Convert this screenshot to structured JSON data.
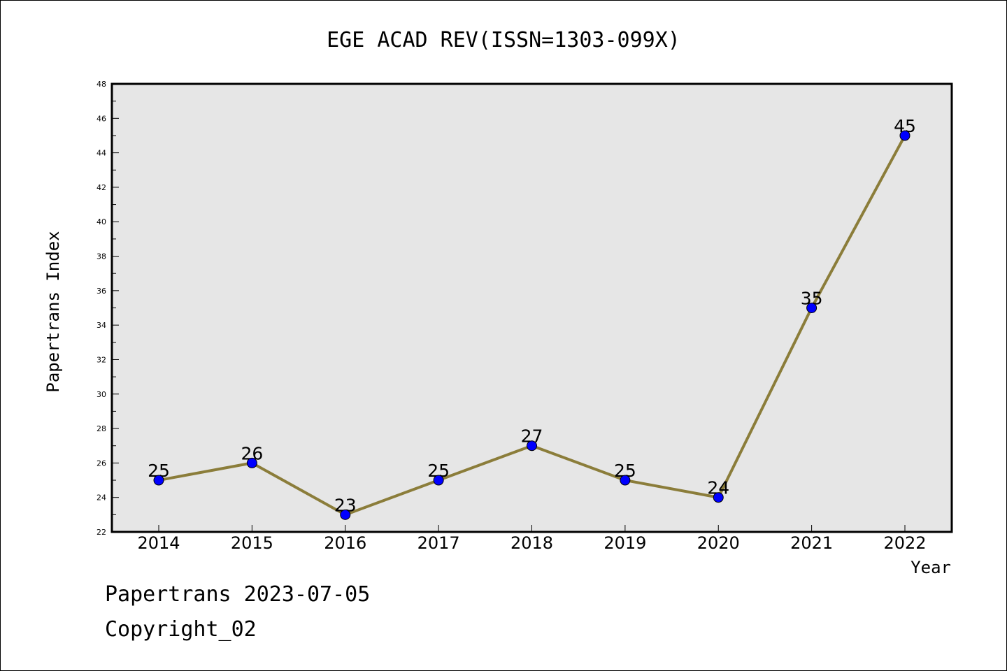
{
  "chart_data": {
    "type": "line",
    "title": "EGE ACAD REV(ISSN=1303-099X)",
    "xlabel": "Year",
    "ylabel": "Papertrans Index",
    "categories": [
      "2014",
      "2015",
      "2016",
      "2017",
      "2018",
      "2019",
      "2020",
      "2021",
      "2022"
    ],
    "values": [
      25,
      26,
      23,
      25,
      27,
      25,
      24,
      35,
      45
    ],
    "data_labels": [
      "25",
      "26",
      "23",
      "25",
      "27",
      "25",
      "24",
      "35",
      "45"
    ],
    "ylim": [
      22,
      48
    ],
    "y_ticks": [
      "22",
      "24",
      "26",
      "28",
      "30",
      "32",
      "34",
      "36",
      "38",
      "40",
      "42",
      "44",
      "46",
      "48"
    ],
    "grid": false,
    "legend": "none",
    "colors": {
      "line": "#8b7d3a",
      "marker": "#0000ff",
      "plot_background": "#e6e6e6"
    }
  },
  "footer": {
    "line1": "Papertrans 2023-07-05",
    "line2": "Copyright_02"
  }
}
